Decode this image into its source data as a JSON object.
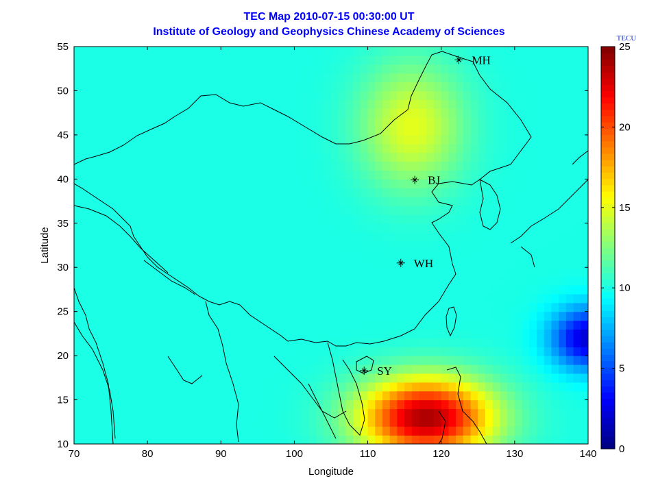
{
  "chart_data": {
    "type": "heatmap",
    "title": "TEC Map 2010-07-15 00:30:00 UT",
    "subtitle": "Institute of Geology and Geophysics Chinese Academy of Sciences",
    "xlabel": "Longitude",
    "ylabel": "Latitude",
    "xlim": [
      70,
      140
    ],
    "ylim": [
      10,
      55
    ],
    "xticks": [
      70,
      80,
      90,
      100,
      110,
      120,
      130,
      140
    ],
    "yticks": [
      10,
      15,
      20,
      25,
      30,
      35,
      40,
      45,
      50,
      55
    ],
    "colorbar": {
      "label": "TECU",
      "range": [
        0,
        25
      ],
      "ticks": [
        0,
        5,
        10,
        15,
        20,
        25
      ],
      "colormap": "jet"
    },
    "stations": [
      {
        "name": "MH",
        "lon": 122.4,
        "lat": 53.5
      },
      {
        "name": "BJ",
        "lon": 116.4,
        "lat": 39.9
      },
      {
        "name": "WH",
        "lon": 114.5,
        "lat": 30.5
      },
      {
        "name": "SY",
        "lon": 109.5,
        "lat": 18.3
      }
    ],
    "features": [
      {
        "desc": "background",
        "tecu": 10
      },
      {
        "desc": "peak near",
        "lon": 118,
        "lat": 13,
        "tecu": 24
      },
      {
        "desc": "low near",
        "lon": 140,
        "lat": 22,
        "tecu": 2
      },
      {
        "desc": "high near",
        "lon": 116,
        "lat": 46,
        "tecu": 15
      }
    ]
  }
}
